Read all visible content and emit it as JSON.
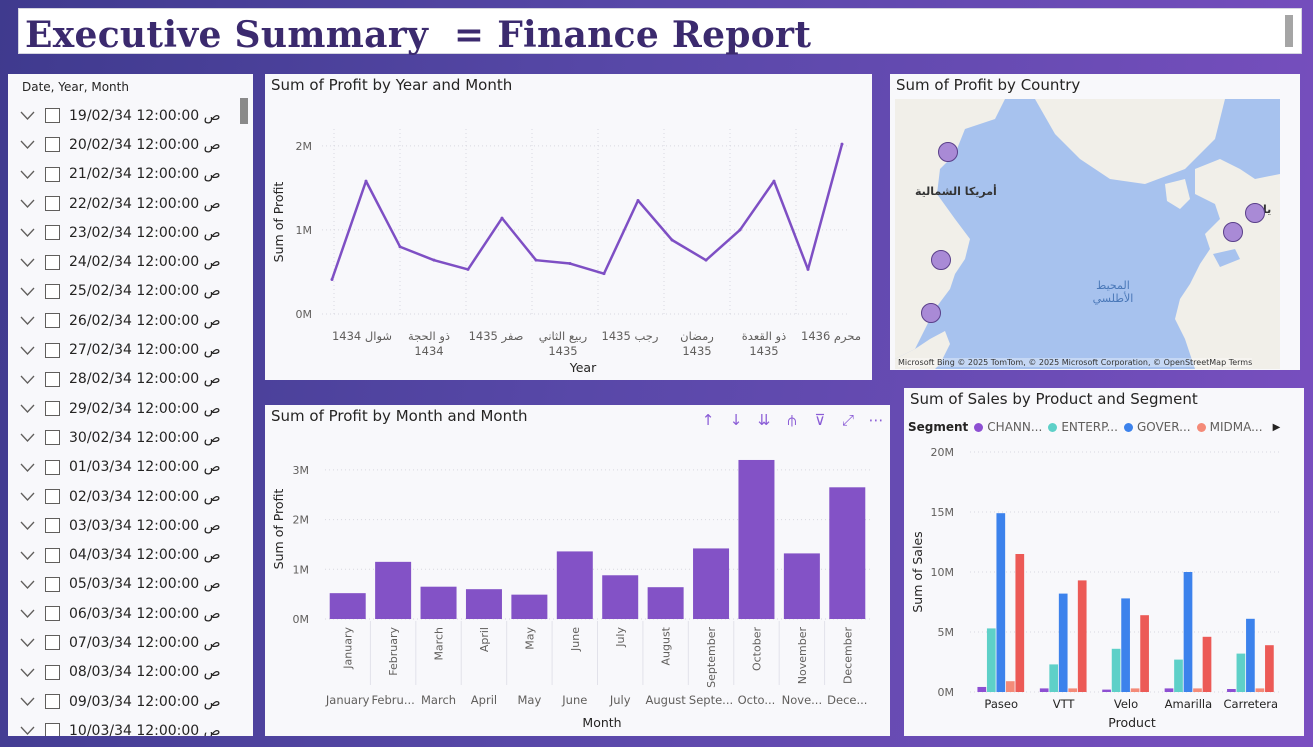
{
  "header": {
    "title": "Executive Summary  = Finance Report"
  },
  "slicer": {
    "header": "Date, Year, Month",
    "items": [
      "19/02/34 12:00:00 ص",
      "20/02/34 12:00:00 ص",
      "21/02/34 12:00:00 ص",
      "22/02/34 12:00:00 ص",
      "23/02/34 12:00:00 ص",
      "24/02/34 12:00:00 ص",
      "25/02/34 12:00:00 ص",
      "26/02/34 12:00:00 ص",
      "27/02/34 12:00:00 ص",
      "28/02/34 12:00:00 ص",
      "29/02/34 12:00:00 ص",
      "30/02/34 12:00:00 ص",
      "01/03/34 12:00:00 ص",
      "02/03/34 12:00:00 ص",
      "03/03/34 12:00:00 ص",
      "04/03/34 12:00:00 ص",
      "05/03/34 12:00:00 ص",
      "06/03/34 12:00:00 ص",
      "07/03/34 12:00:00 ص",
      "08/03/34 12:00:00 ص",
      "09/03/34 12:00:00 ص",
      "10/03/34 12:00:00 ص"
    ]
  },
  "line_panel": {
    "title": "Sum of Profit by Year and Month"
  },
  "bar_panel": {
    "title": "Sum of Profit by Month and Month"
  },
  "map_panel": {
    "title": "Sum of Profit by Country",
    "label_na": "أمريكا الشمالية",
    "label_eu": "يا",
    "label_ocean": "المحيط الأطلسي",
    "attribution": "Microsoft Bing  © 2025 TomTom, © 2025 Microsoft Corporation, © OpenStreetMap Terms"
  },
  "sales_panel": {
    "title": "Sum of Sales by Product and Segment",
    "legend_title": "Segment"
  },
  "colors": {
    "accent": "#7e4fc4",
    "bar": "#8352c6",
    "channel": "#8d4fd2",
    "enterprise": "#5ed0c8",
    "government": "#3c82ec",
    "midmarket": "#f48a78",
    "smallbiz": "#ec5a56"
  },
  "icons": [
    "arrow-up-icon",
    "arrow-down-icon",
    "double-arrow-down-icon",
    "hierarchy-icon",
    "filter-icon",
    "focus-mode-icon",
    "more-options-icon",
    "chevron-down-icon",
    "play-right-icon"
  ],
  "chart_data": [
    {
      "type": "line",
      "title": "Sum of Profit by Year and Month",
      "xlabel": "Year",
      "ylabel": "Sum of Profit",
      "ylim": [
        0,
        2200000
      ],
      "yticks": [
        "0M",
        "1M",
        "2M"
      ],
      "x_tick_labels": [
        [
          "شوال 1434"
        ],
        [
          "ذو الحجة",
          "1434"
        ],
        [
          "صفر 1435"
        ],
        [
          "ربيع الثاني",
          "1435"
        ],
        [
          "رجب 1435"
        ],
        [
          "رمضان",
          "1435"
        ],
        [
          "ذو القعدة",
          "1435"
        ],
        [
          "محرم 1436"
        ]
      ],
      "values": [
        410000,
        1580000,
        800000,
        640000,
        530000,
        1140000,
        640000,
        600000,
        480000,
        1350000,
        880000,
        640000,
        1000000,
        1580000,
        530000,
        2020000
      ]
    },
    {
      "type": "bar",
      "title": "Sum of Profit by Month and Month",
      "xlabel": "Month",
      "ylabel": "Sum of Profit",
      "ylim": [
        0,
        3300000
      ],
      "yticks": [
        "0M",
        "1M",
        "2M",
        "3M"
      ],
      "categories": [
        "January",
        "February",
        "March",
        "April",
        "May",
        "June",
        "July",
        "August",
        "September",
        "October",
        "November",
        "December"
      ],
      "category_labels_short": [
        "January",
        "Febru...",
        "March",
        "April",
        "May",
        "June",
        "July",
        "August",
        "Septe...",
        "Octo...",
        "Nove...",
        "Dece..."
      ],
      "values": [
        520000,
        1150000,
        650000,
        600000,
        490000,
        1360000,
        880000,
        640000,
        1420000,
        3200000,
        1320000,
        2650000
      ]
    },
    {
      "type": "map",
      "title": "Sum of Profit by Country"
    },
    {
      "type": "bar",
      "title": "Sum of Sales by Product and Segment",
      "xlabel": "Product",
      "ylabel": "Sum of Sales",
      "ylim": [
        0,
        20000000
      ],
      "yticks": [
        "0M",
        "5M",
        "10M",
        "15M",
        "20M"
      ],
      "categories": [
        "Paseo",
        "VTT",
        "Velo",
        "Amarilla",
        "Carretera"
      ],
      "legend": [
        "CHANN...",
        "ENTERP...",
        "GOVER...",
        "MIDMA..."
      ],
      "series": [
        {
          "name": "CHANN...",
          "values": [
            420000,
            300000,
            200000,
            300000,
            250000
          ]
        },
        {
          "name": "ENTERP...",
          "values": [
            5300000,
            2300000,
            3600000,
            2700000,
            3200000
          ]
        },
        {
          "name": "GOVER...",
          "values": [
            14900000,
            8200000,
            7800000,
            10000000,
            6100000
          ]
        },
        {
          "name": "MIDMA...",
          "values": [
            900000,
            300000,
            300000,
            300000,
            300000
          ]
        },
        {
          "values": [
            11500000,
            9300000,
            6400000,
            4600000,
            3900000
          ]
        }
      ]
    }
  ]
}
